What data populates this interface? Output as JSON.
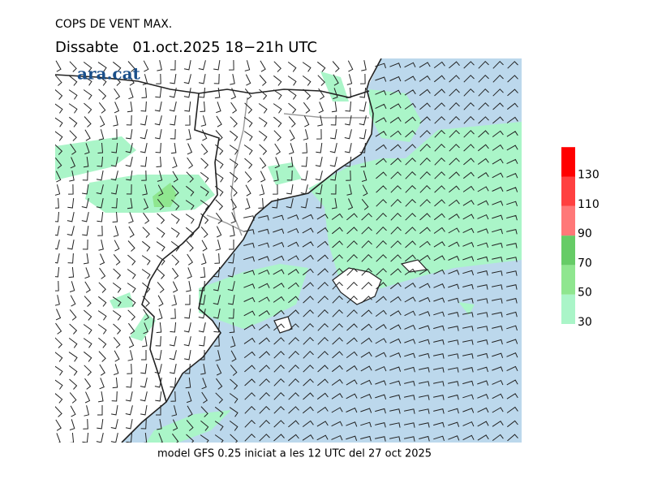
{
  "header": {
    "title": "COPS DE VENT MAX.",
    "subtitle": "Dissabte   01.oct.2025 18−21h UTC",
    "logo": "ara.cat"
  },
  "footer": "model GFS 0.25 iniciat a les 12 UTC del 27 oct 2025",
  "legend": {
    "ticks": [
      30,
      50,
      70,
      90,
      110,
      130
    ],
    "colors": [
      "#aaf5c8",
      "#8fe68f",
      "#66cc66",
      "#ff7878",
      "#ff4040",
      "#ff0000"
    ]
  }
}
